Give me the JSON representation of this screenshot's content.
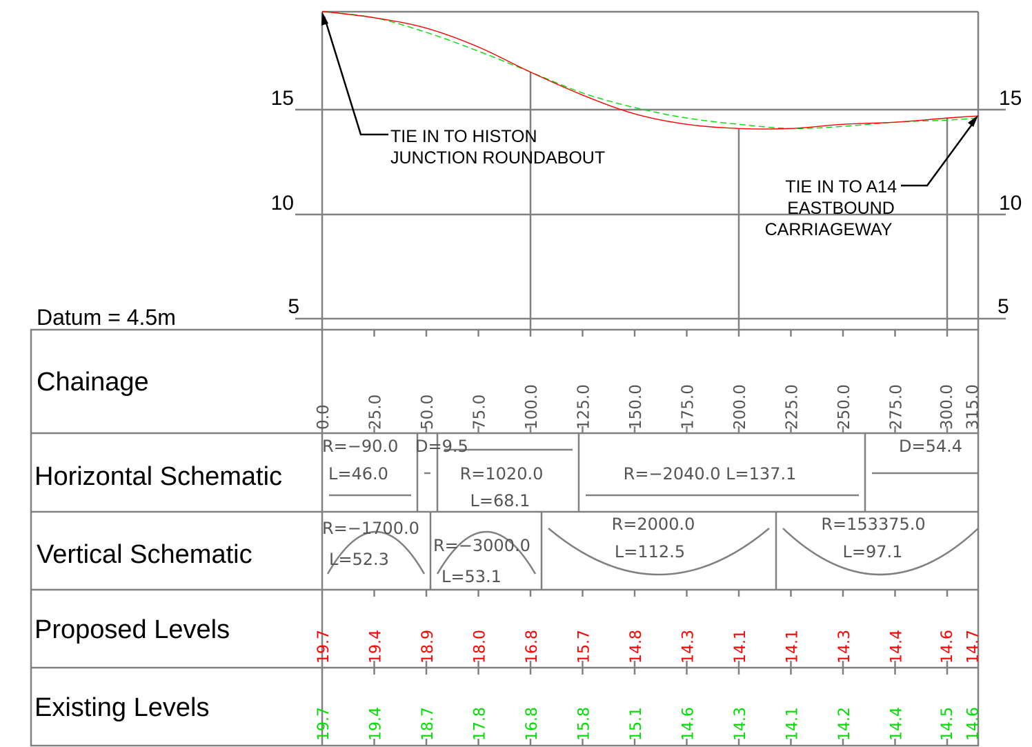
{
  "datum_label": "Datum = 4.5m",
  "colors": {
    "proposed": "#ff0000",
    "existing": "#00dd00",
    "grid": "#808080",
    "text": "#000000",
    "schematic_text": "#555555"
  },
  "chart_data": {
    "type": "line",
    "x_label": "Chainage",
    "xlim": [
      0,
      315
    ],
    "ylim": [
      4.5,
      19.7
    ],
    "y_ticks": [
      5,
      10,
      15
    ],
    "major_vertical_gridlines": [
      0,
      100,
      200,
      300,
      315
    ],
    "x": [
      0,
      25,
      50,
      75,
      100,
      125,
      150,
      175,
      200,
      225,
      250,
      275,
      300,
      315
    ],
    "series": [
      {
        "name": "Proposed Levels",
        "color": "#ff0000",
        "style": "solid",
        "values": [
          19.7,
          19.4,
          18.9,
          18.0,
          16.8,
          15.7,
          14.8,
          14.3,
          14.1,
          14.1,
          14.3,
          14.4,
          14.6,
          14.7
        ]
      },
      {
        "name": "Existing Levels",
        "color": "#00dd00",
        "style": "dashed",
        "values": [
          19.7,
          19.4,
          18.7,
          17.8,
          16.8,
          15.8,
          15.1,
          14.6,
          14.3,
          14.1,
          14.2,
          14.4,
          14.5,
          14.6
        ]
      }
    ],
    "annotations": [
      {
        "lines": [
          "TIE IN TO HISTON",
          "JUNCTION ROUNDABOUT"
        ],
        "points_to_chainage": 0,
        "level": 19.7
      },
      {
        "lines": [
          "TIE IN TO A14",
          "EASTBOUND",
          "CARRIAGEWAY"
        ],
        "points_to_chainage": 315,
        "level": 14.7
      }
    ]
  },
  "rows": {
    "chainage": {
      "label": "Chainage",
      "values": [
        "0.0",
        "25.0",
        "50.0",
        "75.0",
        "100.0",
        "125.0",
        "150.0",
        "175.0",
        "200.0",
        "225.0",
        "250.0",
        "275.0",
        "300.0",
        "315.0"
      ]
    },
    "horizontal": {
      "label": "Horizontal Schematic",
      "elements": [
        {
          "from": 0,
          "to": 46.0,
          "text": [
            "R=−90.0",
            "L=46.0"
          ]
        },
        {
          "from": 46.0,
          "to": 55.5,
          "text": [
            "D=9.5"
          ]
        },
        {
          "from": 55.5,
          "to": 123.6,
          "text": [
            "R=1020.0",
            "L=68.1"
          ]
        },
        {
          "from": 123.6,
          "to": 260.7,
          "text": [
            "R=−2040.0  L=137.1"
          ]
        },
        {
          "from": 260.7,
          "to": 315.0,
          "text": [
            "D=54.4"
          ]
        }
      ]
    },
    "vertical": {
      "label": "Vertical Schematic",
      "curves": [
        {
          "from": 0,
          "to": 52.3,
          "kind": "crest",
          "text": [
            "R=−1700.0",
            "L=52.3"
          ]
        },
        {
          "from": 52.3,
          "to": 105.4,
          "kind": "crest",
          "text": [
            "R=−3000.0",
            "L=53.1"
          ]
        },
        {
          "from": 105.4,
          "to": 217.9,
          "kind": "sag",
          "text": [
            "R=2000.0",
            "L=112.5"
          ]
        },
        {
          "from": 217.9,
          "to": 315.0,
          "kind": "sag",
          "text": [
            "R=153375.0",
            "L=97.1"
          ]
        }
      ]
    },
    "proposed": {
      "label": "Proposed Levels",
      "values": [
        "19.7",
        "19.4",
        "18.9",
        "18.0",
        "16.8",
        "15.7",
        "14.8",
        "14.3",
        "14.1",
        "14.1",
        "14.3",
        "14.4",
        "14.6",
        "14.7"
      ]
    },
    "existing": {
      "label": "Existing Levels",
      "values": [
        "19.7",
        "19.4",
        "18.7",
        "17.8",
        "16.8",
        "15.8",
        "15.1",
        "14.6",
        "14.3",
        "14.1",
        "14.2",
        "14.4",
        "14.5",
        "14.6"
      ]
    }
  }
}
